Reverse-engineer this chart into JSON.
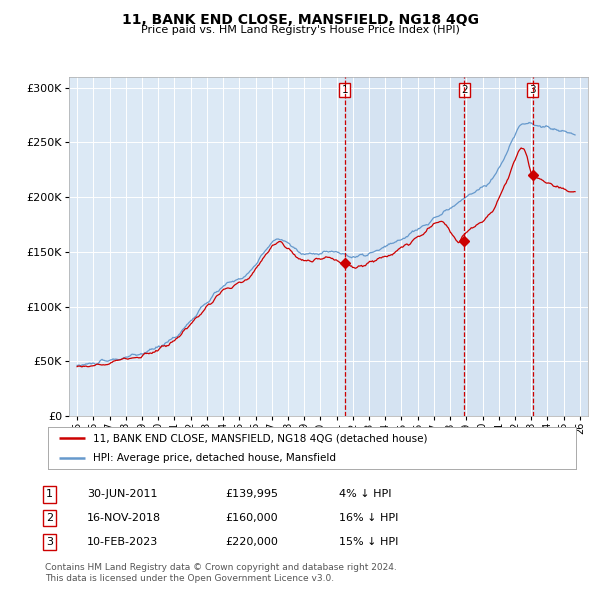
{
  "title": "11, BANK END CLOSE, MANSFIELD, NG18 4QG",
  "subtitle": "Price paid vs. HM Land Registry's House Price Index (HPI)",
  "background_color": "#ffffff",
  "plot_bg_color": "#dce9f5",
  "legend_label_red": "11, BANK END CLOSE, MANSFIELD, NG18 4QG (detached house)",
  "legend_label_blue": "HPI: Average price, detached house, Mansfield",
  "sale_dates": [
    2011.5,
    2018.88,
    2023.1
  ],
  "sale_prices": [
    139995,
    160000,
    220000
  ],
  "sale_labels": [
    "1",
    "2",
    "3"
  ],
  "table_rows": [
    [
      "1",
      "30-JUN-2011",
      "£139,995",
      "4% ↓ HPI"
    ],
    [
      "2",
      "16-NOV-2018",
      "£160,000",
      "16% ↓ HPI"
    ],
    [
      "3",
      "10-FEB-2023",
      "£220,000",
      "15% ↓ HPI"
    ]
  ],
  "footnote1": "Contains HM Land Registry data © Crown copyright and database right 2024.",
  "footnote2": "This data is licensed under the Open Government Licence v3.0.",
  "ylim": [
    0,
    310000
  ],
  "xlim": [
    1994.5,
    2026.5
  ],
  "red_color": "#cc0000",
  "blue_color": "#6699cc",
  "vline_color": "#cc0000",
  "grid_color": "#ffffff",
  "shade_color": "#c8d8ee"
}
